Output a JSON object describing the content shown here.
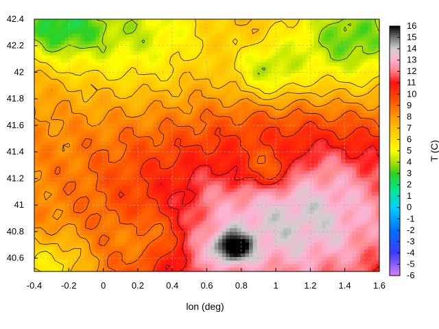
{
  "chart_data": {
    "type": "heatmap",
    "title": "",
    "xlabel": "lon (deg)",
    "ylabel": "",
    "colorbar_label": "T (C)",
    "xlim": [
      -0.4,
      1.6
    ],
    "ylim": [
      40.5,
      42.4
    ],
    "x_ticks": [
      "-0.4",
      "-0.2",
      "0",
      "0.2",
      "0.4",
      "0.6",
      "0.8",
      "1",
      "1.2",
      "1.4",
      "1.6"
    ],
    "y_ticks": [
      "40.6",
      "40.8",
      "41",
      "41.2",
      "41.4",
      "41.6",
      "41.8",
      "42",
      "42.2",
      "42.4"
    ],
    "colorbar_ticks": [
      "-6",
      "-5",
      "-4",
      "-3",
      "-2",
      "-1",
      "0",
      "1",
      "2",
      "3",
      "4",
      "5",
      "6",
      "7",
      "8",
      "9",
      "10",
      "11",
      "12",
      "13",
      "14",
      "15",
      "16"
    ],
    "colorbar_range": [
      -6,
      16
    ],
    "grid": true,
    "contours": true,
    "colormap_stops": [
      {
        "value": -6,
        "color": "#d580ff"
      },
      {
        "value": -4,
        "color": "#3a3aff"
      },
      {
        "value": -2,
        "color": "#0070ff"
      },
      {
        "value": 0,
        "color": "#00d0ff"
      },
      {
        "value": 1.5,
        "color": "#00e890"
      },
      {
        "value": 3,
        "color": "#30d020"
      },
      {
        "value": 4,
        "color": "#b0e000"
      },
      {
        "value": 5,
        "color": "#ffff00"
      },
      {
        "value": 7,
        "color": "#ffc000"
      },
      {
        "value": 8,
        "color": "#ff9a00"
      },
      {
        "value": 9.5,
        "color": "#ff5000"
      },
      {
        "value": 11,
        "color": "#ff1010"
      },
      {
        "value": 12,
        "color": "#ff8080"
      },
      {
        "value": 13,
        "color": "#ffb0d0"
      },
      {
        "value": 14,
        "color": "#d0d0d0"
      },
      {
        "value": 15,
        "color": "#707070"
      },
      {
        "value": 16,
        "color": "#000000"
      }
    ],
    "field_features": [
      {
        "lon": 1.6,
        "lat": 40.9,
        "value": 10.8,
        "spread": 0.55
      },
      {
        "lon": 0.9,
        "lat": 40.7,
        "value": 10.6,
        "spread": 0.45
      },
      {
        "lon": 1.1,
        "lat": 41.05,
        "value": 10.2,
        "spread": 0.4
      },
      {
        "lon": 0.3,
        "lat": 41.25,
        "value": 9.3,
        "spread": 0.35
      },
      {
        "lon": 0.45,
        "lat": 40.6,
        "value": 9.8,
        "spread": 0.25
      },
      {
        "lon": 0.2,
        "lat": 42.3,
        "value": 4.5,
        "spread": 0.35
      },
      {
        "lon": -0.3,
        "lat": 42.35,
        "value": 4.0,
        "spread": 0.2
      },
      {
        "lon": 1.45,
        "lat": 42.25,
        "value": 3.2,
        "spread": 0.3
      },
      {
        "lon": 0.95,
        "lat": 42.0,
        "value": 5.0,
        "spread": 0.15
      },
      {
        "lon": 0.95,
        "lat": 41.27,
        "value": 5.5,
        "spread": 0.12
      },
      {
        "lon": 0.3,
        "lat": 40.75,
        "value": 6.0,
        "spread": 0.15
      },
      {
        "lon": -0.3,
        "lat": 40.55,
        "value": 5.5,
        "spread": 0.15
      },
      {
        "lon": 0.75,
        "lat": 40.68,
        "value": 12.2,
        "spread": 0.08
      }
    ],
    "field_base": 8.2
  }
}
